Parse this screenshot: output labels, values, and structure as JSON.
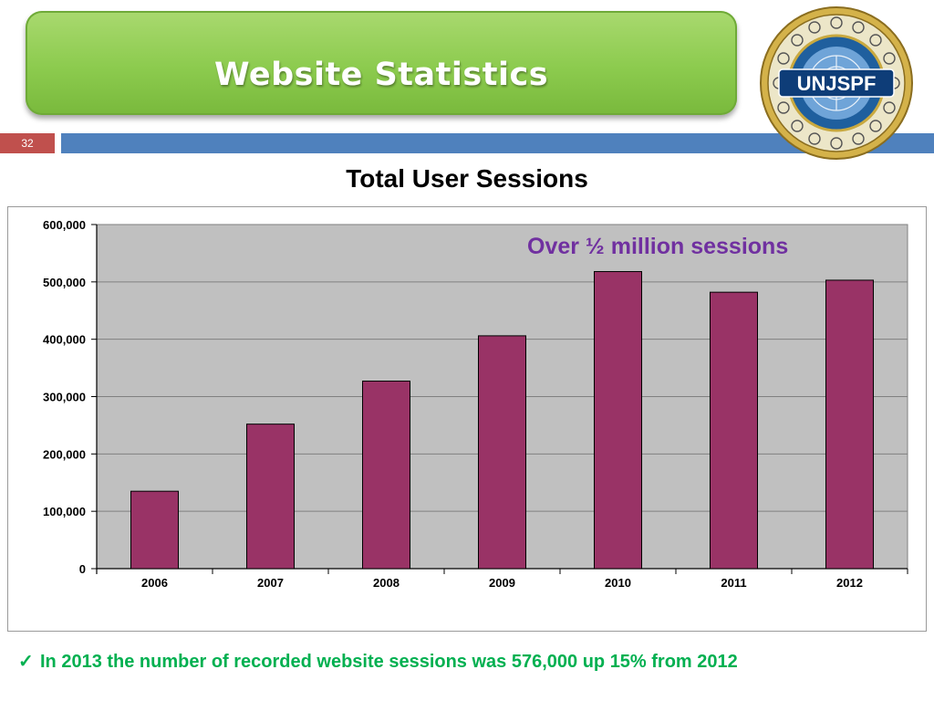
{
  "header": {
    "title": "Website Statistics",
    "page_number": "32",
    "logo_text": "UNJSPF"
  },
  "colors": {
    "banner": "#8ccb4e",
    "band": "#4f81bd",
    "page_number_bg": "#c0504d",
    "bar": "#993366",
    "plot_bg": "#c0c0c0",
    "annotation": "#7030a0",
    "note": "#00b050"
  },
  "chart_data": {
    "type": "bar",
    "title": "Total User Sessions",
    "categories": [
      "2006",
      "2007",
      "2008",
      "2009",
      "2010",
      "2011",
      "2012"
    ],
    "values": [
      135000,
      252000,
      327000,
      406000,
      518000,
      482000,
      503000
    ],
    "yticks": [
      "0",
      "100,000",
      "200,000",
      "300,000",
      "400,000",
      "500,000",
      "600,000"
    ],
    "ylim": [
      0,
      600000
    ],
    "grid": true,
    "annotation": "Over ½ million sessions"
  },
  "footer": {
    "check_icon": "checkmark-icon",
    "note": "In 2013 the number of recorded website sessions was 576,000 up 15% from 2012"
  }
}
